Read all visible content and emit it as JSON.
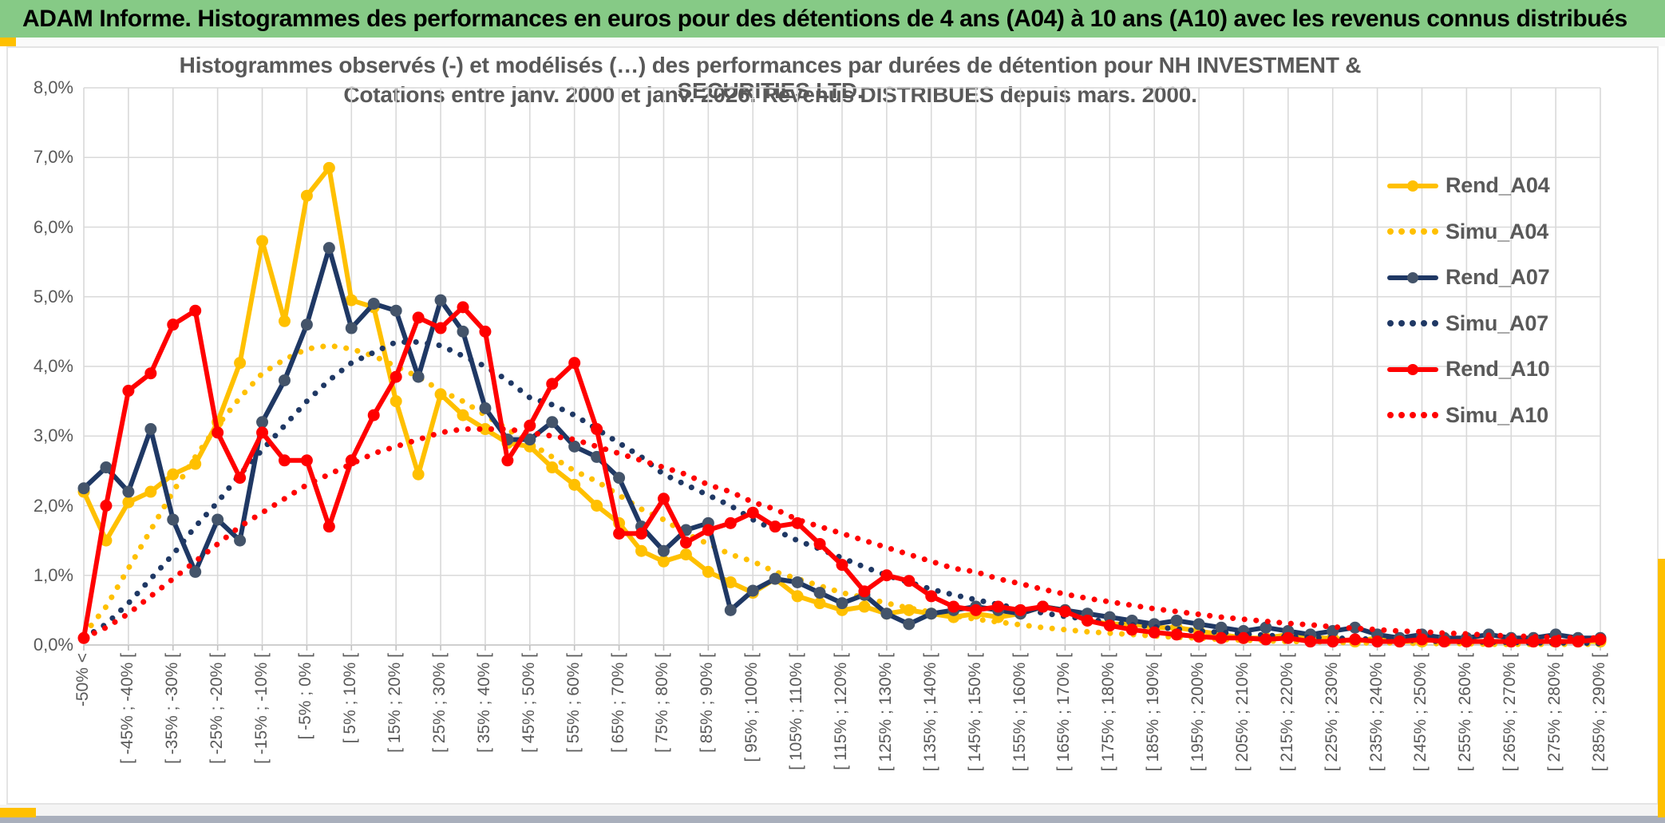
{
  "header": {
    "title": "ADAM Informe. Histogrammes des performances en euros pour des détentions de 4 ans (A04) à 10 ans (A10) avec les revenus connus distribués",
    "bg_color": "#86CA86"
  },
  "chart_data": {
    "type": "line",
    "title_line1": "Histogrammes observés (-) et modélisés (…) des performances par durées de détention pour NH INVESTMENT & SECURITIES LTD.",
    "title_line2": "Cotations entre janv. 2000 et janv. 2026. Revenus DISTRIBUES depuis mars. 2000.",
    "ylim": [
      0,
      8
    ],
    "y_tick_labels": [
      "0,0%",
      "1,0%",
      "2,0%",
      "3,0%",
      "4,0%",
      "5,0%",
      "6,0%",
      "7,0%",
      "8,0%"
    ],
    "grid": true,
    "legend_position": "right",
    "x_tick_labels": [
      "-50% <",
      "[ -45% ; -40% [",
      "[ -35% ; -30% [",
      "[ -25% ; -20% [",
      "[ -15% ; -10% [",
      "[ -5% ; 0% [",
      "[ 5% ; 10% [",
      "[ 15% ; 20% [",
      "[ 25% ; 30% [",
      "[ 35% ; 40% [",
      "[ 45% ; 50% [",
      "[ 55% ; 60% [",
      "[ 65% ; 70% [",
      "[ 75% ; 80% [",
      "[ 85% ; 90% [",
      "[ 95% ; 100% [",
      "[ 105% ; 110% [",
      "[ 115% ; 120% [",
      "[ 125% ; 130% [",
      "[ 135% ; 140% [",
      "[ 145% ; 150% [",
      "[ 155% ; 160% [",
      "[ 165% ; 170% [",
      "[ 175% ; 180% [",
      "[ 185% ; 190% [",
      "[ 195% ; 200% [",
      "[ 205% ; 210% [",
      "[ 215% ; 220% [",
      "[ 225% ; 230% [",
      "[ 235% ; 240% [",
      "[ 245% ; 250% [",
      "[ 255% ; 260% [",
      "[ 265% ; 270% [",
      "[ 275% ; 280% [",
      "[ 285% ; 290% ["
    ],
    "points_per_labeled_tick": 2,
    "series": [
      {
        "name": "Rend_A04",
        "color": "#FFC000",
        "style": "solid",
        "marker": true,
        "marker_color": "#FFC000",
        "values": [
          2.2,
          1.5,
          2.05,
          2.2,
          2.45,
          2.6,
          3.2,
          4.05,
          5.8,
          4.65,
          6.45,
          6.85,
          4.95,
          4.85,
          3.5,
          2.45,
          3.6,
          3.3,
          3.1,
          2.9,
          2.85,
          2.55,
          2.3,
          2.0,
          1.75,
          1.35,
          1.2,
          1.3,
          1.05,
          0.9,
          0.75,
          0.95,
          0.7,
          0.6,
          0.5,
          0.55,
          0.45,
          0.5,
          0.45,
          0.4,
          0.45,
          0.4,
          0.45,
          0.55,
          0.5,
          0.35,
          0.3,
          0.3,
          0.25,
          0.25,
          0.2,
          0.15,
          0.1,
          0.1,
          0.15,
          0.1,
          0.1,
          0.05,
          0.1,
          0.05,
          0.05,
          0.1,
          0.05,
          0.05,
          0.05,
          0.05,
          0.05,
          0.05,
          0.05
        ]
      },
      {
        "name": "Simu_A04",
        "color": "#FFC000",
        "style": "dotted",
        "marker": false,
        "values": [
          0.15,
          0.55,
          1.1,
          1.65,
          2.2,
          2.7,
          3.15,
          3.55,
          3.9,
          4.1,
          4.25,
          4.3,
          4.25,
          4.15,
          4.0,
          3.85,
          3.65,
          3.5,
          3.3,
          3.1,
          2.9,
          2.7,
          2.5,
          2.35,
          2.15,
          1.95,
          1.8,
          1.6,
          1.45,
          1.3,
          1.2,
          1.05,
          0.95,
          0.85,
          0.75,
          0.68,
          0.6,
          0.53,
          0.47,
          0.42,
          0.37,
          0.33,
          0.29,
          0.25,
          0.22,
          0.19,
          0.17,
          0.15,
          0.13,
          0.11,
          0.1,
          0.08,
          0.07,
          0.06,
          0.05,
          0.05,
          0.04,
          0.03,
          0.03,
          0.03,
          0.02,
          0.02,
          0.02,
          0.01,
          0.01,
          0.01,
          0.01,
          0.01,
          0.01
        ]
      },
      {
        "name": "Rend_A07",
        "color": "#1F3864",
        "style": "solid",
        "marker": true,
        "marker_color": "#44546A",
        "values": [
          2.25,
          2.55,
          2.2,
          3.1,
          1.8,
          1.05,
          1.8,
          1.5,
          3.2,
          3.8,
          4.6,
          5.7,
          4.55,
          4.9,
          4.8,
          3.85,
          4.95,
          4.5,
          3.4,
          2.95,
          2.95,
          3.2,
          2.85,
          2.7,
          2.4,
          1.7,
          1.35,
          1.65,
          1.75,
          0.5,
          0.78,
          0.95,
          0.9,
          0.75,
          0.6,
          0.72,
          0.45,
          0.3,
          0.45,
          0.5,
          0.55,
          0.5,
          0.45,
          0.55,
          0.5,
          0.45,
          0.4,
          0.35,
          0.3,
          0.35,
          0.3,
          0.25,
          0.2,
          0.25,
          0.2,
          0.15,
          0.2,
          0.25,
          0.15,
          0.1,
          0.15,
          0.1,
          0.1,
          0.15,
          0.1,
          0.1,
          0.15,
          0.1,
          0.1
        ]
      },
      {
        "name": "Simu_A07",
        "color": "#1F3864",
        "style": "dotted",
        "marker": false,
        "values": [
          0.1,
          0.3,
          0.6,
          0.95,
          1.3,
          1.7,
          2.05,
          2.45,
          2.8,
          3.15,
          3.5,
          3.8,
          4.05,
          4.2,
          4.35,
          4.35,
          4.3,
          4.15,
          4.0,
          3.8,
          3.55,
          3.45,
          3.3,
          3.1,
          2.9,
          2.7,
          2.45,
          2.3,
          2.15,
          2.0,
          1.8,
          1.65,
          1.5,
          1.38,
          1.25,
          1.12,
          1.0,
          0.9,
          0.8,
          0.72,
          0.65,
          0.58,
          0.52,
          0.46,
          0.41,
          0.37,
          0.33,
          0.29,
          0.26,
          0.23,
          0.2,
          0.18,
          0.16,
          0.14,
          0.12,
          0.11,
          0.1,
          0.09,
          0.08,
          0.07,
          0.06,
          0.05,
          0.05,
          0.04,
          0.04,
          0.03,
          0.03,
          0.03,
          0.02
        ]
      },
      {
        "name": "Rend_A10",
        "color": "#FF0000",
        "style": "solid",
        "marker": true,
        "marker_color": "#FF0000",
        "values": [
          0.1,
          2.0,
          3.65,
          3.9,
          4.6,
          4.8,
          3.05,
          2.4,
          3.05,
          2.65,
          2.65,
          1.7,
          2.65,
          3.3,
          3.85,
          4.7,
          4.55,
          4.85,
          4.5,
          2.65,
          3.15,
          3.75,
          4.05,
          3.1,
          1.6,
          1.6,
          2.1,
          1.47,
          1.65,
          1.75,
          1.9,
          1.7,
          1.75,
          1.45,
          1.15,
          0.77,
          1.0,
          0.92,
          0.7,
          0.55,
          0.5,
          0.55,
          0.5,
          0.55,
          0.48,
          0.35,
          0.28,
          0.22,
          0.18,
          0.15,
          0.12,
          0.1,
          0.1,
          0.08,
          0.1,
          0.05,
          0.05,
          0.08,
          0.05,
          0.05,
          0.08,
          0.05,
          0.05,
          0.05,
          0.05,
          0.05,
          0.05,
          0.05,
          0.08
        ]
      },
      {
        "name": "Simu_A10",
        "color": "#FF0000",
        "style": "dotted",
        "marker": false,
        "values": [
          0.1,
          0.25,
          0.45,
          0.7,
          0.95,
          1.2,
          1.45,
          1.7,
          1.9,
          2.1,
          2.3,
          2.45,
          2.6,
          2.75,
          2.85,
          2.95,
          3.05,
          3.1,
          3.1,
          3.1,
          3.05,
          3.0,
          2.95,
          2.85,
          2.75,
          2.65,
          2.55,
          2.45,
          2.3,
          2.2,
          2.05,
          1.95,
          1.8,
          1.7,
          1.6,
          1.5,
          1.4,
          1.3,
          1.2,
          1.1,
          1.05,
          0.95,
          0.88,
          0.8,
          0.73,
          0.67,
          0.62,
          0.57,
          0.52,
          0.48,
          0.44,
          0.4,
          0.37,
          0.34,
          0.31,
          0.29,
          0.26,
          0.24,
          0.22,
          0.2,
          0.19,
          0.17,
          0.16,
          0.14,
          0.13,
          0.12,
          0.11,
          0.1,
          0.1
        ]
      }
    ],
    "colors": {
      "gridline": "#D9D9D9",
      "axis_line": "#BFBFBF",
      "axis_text": "#595959",
      "gold_accent": "#FFC000"
    }
  }
}
